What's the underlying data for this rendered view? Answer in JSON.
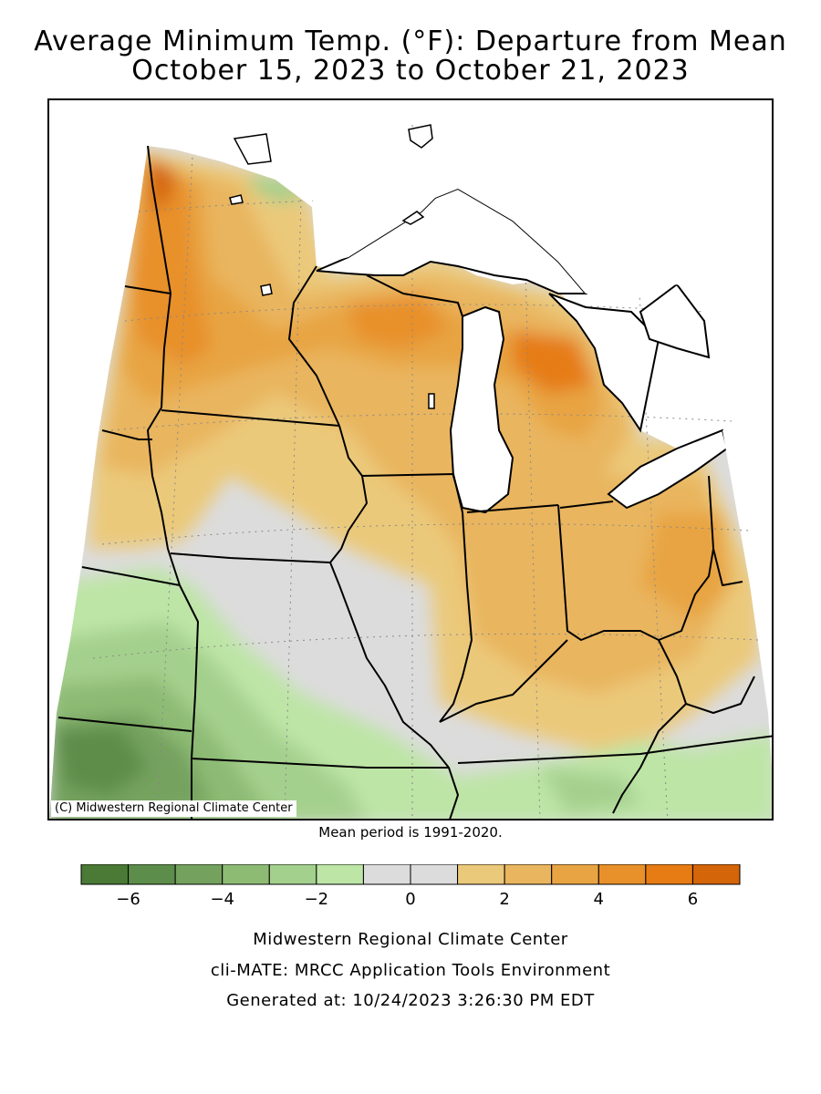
{
  "title": {
    "line1": "Average Minimum Temp. (°F): Departure from Mean",
    "line2": "October 15, 2023 to October 21, 2023"
  },
  "map": {
    "copyright": "(C) Midwestern Regional Climate Center",
    "mean_period": "Mean period is 1991-2020."
  },
  "legend": {
    "bins": [
      {
        "from": -7,
        "to": -6,
        "color": "#4a7a35"
      },
      {
        "from": -6,
        "to": -5,
        "color": "#5d8d4a"
      },
      {
        "from": -5,
        "to": -4,
        "color": "#74a25e"
      },
      {
        "from": -4,
        "to": -3,
        "color": "#8dbb74"
      },
      {
        "from": -3,
        "to": -2,
        "color": "#a4d08d"
      },
      {
        "from": -2,
        "to": -1,
        "color": "#bde5a6"
      },
      {
        "from": -1,
        "to": 0,
        "color": "#dcdcdc"
      },
      {
        "from": 0,
        "to": 1,
        "color": "#dcdcdc"
      },
      {
        "from": 1,
        "to": 2,
        "color": "#ebc97a"
      },
      {
        "from": 2,
        "to": 3,
        "color": "#e9b55e"
      },
      {
        "from": 3,
        "to": 4,
        "color": "#e8a443"
      },
      {
        "from": 4,
        "to": 5,
        "color": "#e8902a"
      },
      {
        "from": 5,
        "to": 6,
        "color": "#e67c13"
      },
      {
        "from": 6,
        "to": 7,
        "color": "#d46508"
      }
    ],
    "tick_labels": [
      "−6",
      "−4",
      "−2",
      "0",
      "2",
      "4",
      "6"
    ],
    "tick_values": [
      -6,
      -4,
      -2,
      0,
      2,
      4,
      6
    ]
  },
  "credits": {
    "line1": "Midwestern Regional Climate Center",
    "line2": "cli-MATE: MRCC Application Tools Environment",
    "line3": "Generated at: 10/24/2023 3:26:30 PM EDT"
  }
}
